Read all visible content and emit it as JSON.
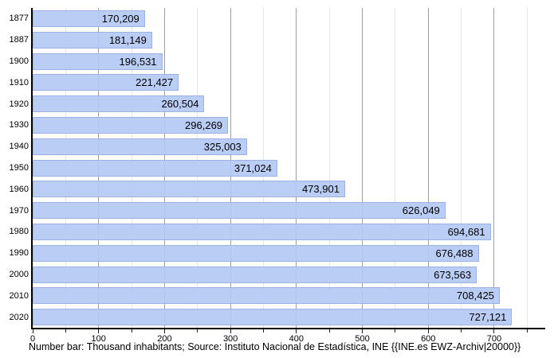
{
  "chart_data": {
    "type": "bar",
    "orientation": "horizontal",
    "title": "",
    "xlabel": "",
    "ylabel": "",
    "categories": [
      "1877",
      "1887",
      "1900",
      "1910",
      "1920",
      "1930",
      "1940",
      "1950",
      "1960",
      "1970",
      "1980",
      "1990",
      "2000",
      "2010",
      "2020"
    ],
    "values": [
      170209,
      181149,
      196531,
      221427,
      260504,
      296269,
      325003,
      371024,
      473901,
      626049,
      694681,
      676488,
      673563,
      708425,
      727121
    ],
    "value_labels": [
      "170,209",
      "181,149",
      "196,531",
      "221,427",
      "260,504",
      "296,269",
      "325,003",
      "371,024",
      "473,901",
      "626,049",
      "694,681",
      "676,488",
      "673,563",
      "708,425",
      "727,121"
    ],
    "axis_scale_unit": "thousand inhabitants",
    "xlim": [
      0,
      775
    ],
    "x_major_tick_step": 100,
    "x_minor_tick_step": 50,
    "x_tick_labels": [
      "0",
      "100",
      "200",
      "300",
      "400",
      "500",
      "600",
      "700"
    ],
    "grid": "vertical",
    "legend": "none"
  },
  "caption": "Number bar: Thousand inhabitants; Source: Instituto Nacional de Estadística, INE {{INE.es EWZ-Archiv|20000}}",
  "colors": {
    "bar_fill": "#b5c9f3",
    "bar_border": "#9cb0e2",
    "grid_major": "#9e9e9e",
    "grid_minor": "#e6e6e6",
    "axis": "#000000",
    "text": "#000000",
    "background": "#ffffff"
  }
}
